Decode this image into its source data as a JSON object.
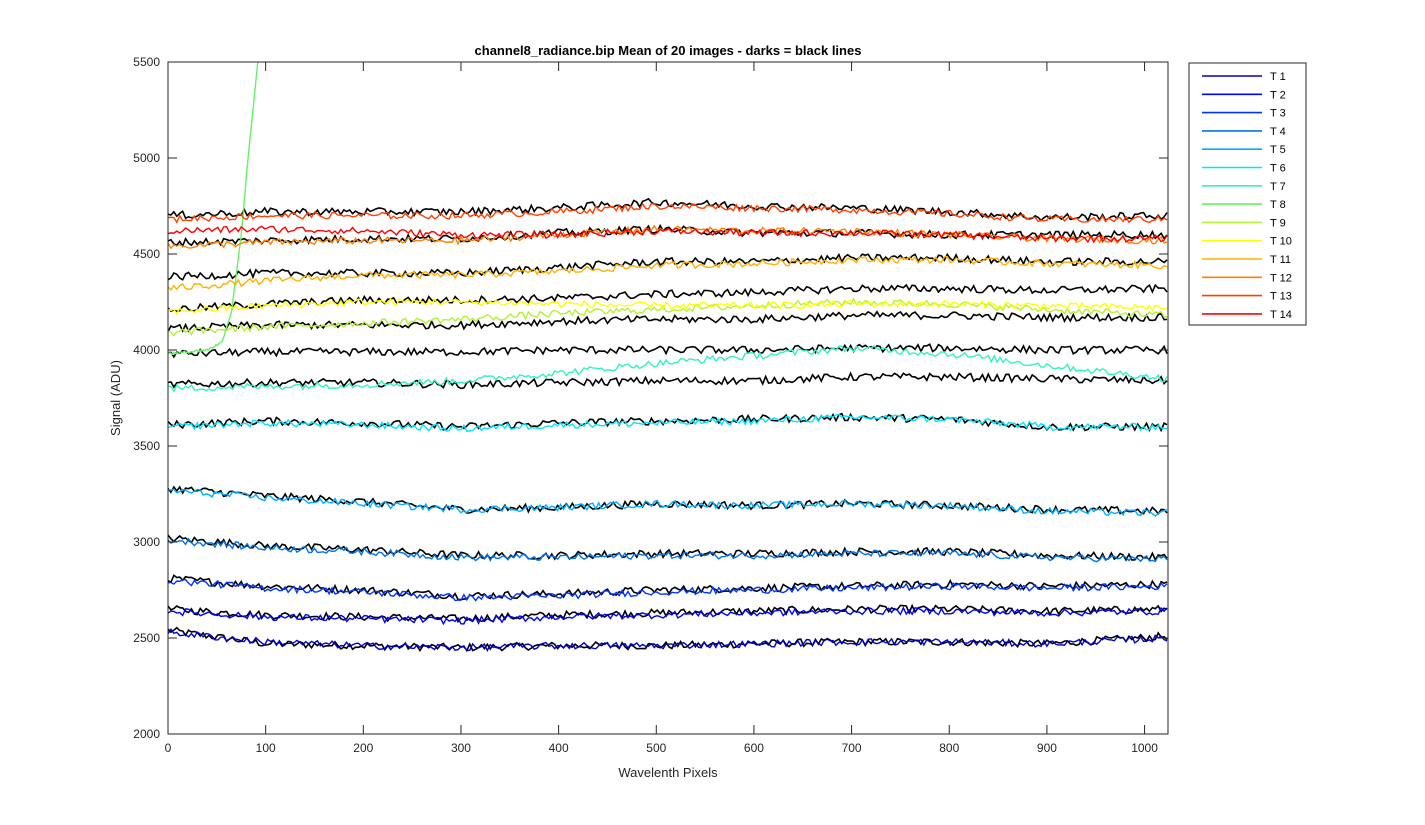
{
  "chart_data": {
    "type": "line",
    "title": "channel8_radiance.bip  Mean of 20 images - darks = black lines",
    "xlabel": "Wavelenth Pixels",
    "ylabel": "Signal (ADU)",
    "xlim": [
      0,
      1024
    ],
    "ylim": [
      2000,
      5500
    ],
    "xticks": [
      "0",
      "100",
      "200",
      "300",
      "400",
      "500",
      "600",
      "700",
      "800",
      "900",
      "1000"
    ],
    "yticks": [
      "2000",
      "2500",
      "3000",
      "3500",
      "4000",
      "4500",
      "5000",
      "5500"
    ],
    "grid": false,
    "legend_position": "outside-top-right",
    "dark_color": "#000000",
    "series": [
      {
        "name": "T 1",
        "color": "#0000cd",
        "x": [
          0,
          100,
          200,
          300,
          400,
          500,
          600,
          700,
          800,
          900,
          1024
        ],
        "y": [
          2530,
          2480,
          2460,
          2450,
          2460,
          2460,
          2470,
          2480,
          2480,
          2470,
          2500
        ]
      },
      {
        "name": "T 2",
        "color": "#0000ff",
        "x": [
          0,
          100,
          200,
          300,
          400,
          500,
          600,
          700,
          800,
          900,
          1024
        ],
        "y": [
          2640,
          2610,
          2600,
          2590,
          2610,
          2620,
          2630,
          2640,
          2640,
          2630,
          2640
        ]
      },
      {
        "name": "T 3",
        "color": "#0033ff",
        "x": [
          0,
          100,
          200,
          300,
          400,
          500,
          600,
          700,
          800,
          900,
          1024
        ],
        "y": [
          2800,
          2760,
          2740,
          2710,
          2720,
          2740,
          2750,
          2760,
          2770,
          2760,
          2770
        ]
      },
      {
        "name": "T 4",
        "color": "#0073e6",
        "x": [
          0,
          100,
          200,
          300,
          400,
          500,
          600,
          700,
          800,
          900,
          1024
        ],
        "y": [
          3010,
          2970,
          2950,
          2920,
          2920,
          2930,
          2930,
          2940,
          2940,
          2920,
          2910
        ]
      },
      {
        "name": "T 5",
        "color": "#00b0ff",
        "x": [
          0,
          100,
          200,
          300,
          400,
          500,
          600,
          700,
          800,
          900,
          1024
        ],
        "y": [
          3270,
          3230,
          3200,
          3170,
          3180,
          3200,
          3190,
          3200,
          3190,
          3160,
          3150
        ]
      },
      {
        "name": "T 6",
        "color": "#00e6ff",
        "x": [
          0,
          100,
          200,
          300,
          400,
          500,
          600,
          700,
          800,
          900,
          1024
        ],
        "y": [
          3600,
          3620,
          3610,
          3590,
          3610,
          3620,
          3630,
          3650,
          3640,
          3600,
          3600
        ]
      },
      {
        "name": "T 7",
        "color": "#33f2c0",
        "x": [
          0,
          100,
          200,
          300,
          400,
          500,
          600,
          700,
          800,
          900,
          1024
        ],
        "y": [
          3800,
          3810,
          3820,
          3840,
          3880,
          3930,
          3970,
          4010,
          3980,
          3920,
          3850
        ]
      },
      {
        "name": "T 8",
        "color": "#66f266",
        "x": [
          0,
          40,
          55,
          65,
          75,
          82,
          88,
          92
        ],
        "y": [
          3980,
          4000,
          4040,
          4200,
          4600,
          5000,
          5300,
          5500
        ]
      },
      {
        "name": "T 9",
        "color": "#b3f233",
        "x": [
          0,
          100,
          200,
          300,
          400,
          500,
          600,
          700,
          800,
          900,
          1024
        ],
        "y": [
          4090,
          4120,
          4140,
          4160,
          4190,
          4210,
          4230,
          4250,
          4240,
          4210,
          4180
        ]
      },
      {
        "name": "T 10",
        "color": "#ffff00",
        "x": [
          0,
          100,
          200,
          300,
          400,
          500,
          600,
          700,
          800,
          900,
          1024
        ],
        "y": [
          4200,
          4230,
          4250,
          4250,
          4240,
          4230,
          4230,
          4240,
          4240,
          4230,
          4220
        ]
      },
      {
        "name": "T 11",
        "color": "#ffb000",
        "x": [
          0,
          100,
          200,
          300,
          400,
          500,
          600,
          700,
          800,
          900,
          1024
        ],
        "y": [
          4320,
          4360,
          4390,
          4390,
          4410,
          4440,
          4450,
          4470,
          4470,
          4450,
          4440
        ]
      },
      {
        "name": "T 12",
        "color": "#ff8000",
        "x": [
          0,
          100,
          200,
          300,
          400,
          500,
          600,
          700,
          800,
          900,
          1024
        ],
        "y": [
          4540,
          4560,
          4570,
          4570,
          4600,
          4630,
          4620,
          4620,
          4600,
          4580,
          4570
        ]
      },
      {
        "name": "T 13",
        "color": "#ff4000",
        "x": [
          0,
          100,
          200,
          300,
          400,
          500,
          600,
          700,
          800,
          900,
          1024
        ],
        "y": [
          4680,
          4700,
          4700,
          4700,
          4720,
          4750,
          4740,
          4730,
          4710,
          4680,
          4680
        ]
      },
      {
        "name": "T 14",
        "color": "#ff0000",
        "x": [
          0,
          100,
          200,
          300,
          400,
          500,
          600,
          700,
          800,
          900,
          1024
        ],
        "y": [
          4620,
          4630,
          4620,
          4600,
          4600,
          4620,
          4610,
          4610,
          4600,
          4580,
          4580
        ]
      }
    ],
    "dark_lines": [
      {
        "x": [
          0,
          100,
          200,
          300,
          400,
          500,
          600,
          700,
          800,
          900,
          1024
        ],
        "y": [
          2540,
          2470,
          2460,
          2450,
          2460,
          2460,
          2470,
          2480,
          2480,
          2470,
          2510
        ]
      },
      {
        "x": [
          0,
          100,
          200,
          300,
          400,
          500,
          600,
          700,
          800,
          900,
          1024
        ],
        "y": [
          2650,
          2620,
          2610,
          2600,
          2620,
          2630,
          2640,
          2650,
          2650,
          2640,
          2650
        ]
      },
      {
        "x": [
          0,
          100,
          200,
          300,
          400,
          500,
          600,
          700,
          800,
          900,
          1024
        ],
        "y": [
          2810,
          2770,
          2750,
          2720,
          2730,
          2750,
          2760,
          2770,
          2780,
          2770,
          2780
        ]
      },
      {
        "x": [
          0,
          100,
          200,
          300,
          400,
          500,
          600,
          700,
          800,
          900,
          1024
        ],
        "y": [
          3020,
          2980,
          2960,
          2930,
          2930,
          2940,
          2940,
          2950,
          2950,
          2930,
          2920
        ]
      },
      {
        "x": [
          0,
          100,
          200,
          300,
          400,
          500,
          600,
          700,
          800,
          900,
          1024
        ],
        "y": [
          3280,
          3240,
          3210,
          3170,
          3180,
          3200,
          3190,
          3200,
          3190,
          3170,
          3160
        ]
      },
      {
        "x": [
          0,
          100,
          200,
          300,
          400,
          500,
          600,
          700,
          800,
          900,
          1024
        ],
        "y": [
          3610,
          3630,
          3620,
          3600,
          3620,
          3630,
          3640,
          3650,
          3640,
          3600,
          3600
        ]
      },
      {
        "x": [
          0,
          100,
          200,
          300,
          400,
          500,
          600,
          700,
          800,
          900,
          1024
        ],
        "y": [
          3820,
          3830,
          3830,
          3820,
          3830,
          3840,
          3840,
          3860,
          3860,
          3850,
          3840
        ]
      },
      {
        "x": [
          0,
          100,
          200,
          300,
          400,
          500,
          600,
          700,
          800,
          900,
          1024
        ],
        "y": [
          3980,
          3990,
          3990,
          3990,
          4000,
          4000,
          4000,
          4010,
          4010,
          4000,
          4000
        ]
      },
      {
        "x": [
          0,
          100,
          200,
          300,
          400,
          500,
          600,
          700,
          800,
          900,
          1024
        ],
        "y": [
          4110,
          4130,
          4130,
          4130,
          4150,
          4160,
          4160,
          4180,
          4180,
          4170,
          4170
        ]
      },
      {
        "x": [
          0,
          100,
          200,
          300,
          400,
          500,
          600,
          700,
          800,
          900,
          1024
        ],
        "y": [
          4210,
          4240,
          4260,
          4260,
          4270,
          4290,
          4300,
          4320,
          4320,
          4310,
          4320
        ]
      },
      {
        "x": [
          0,
          100,
          200,
          300,
          400,
          500,
          600,
          700,
          800,
          900,
          1024
        ],
        "y": [
          4380,
          4400,
          4400,
          4400,
          4430,
          4460,
          4460,
          4480,
          4480,
          4460,
          4460
        ]
      },
      {
        "x": [
          0,
          100,
          200,
          300,
          400,
          500,
          600,
          700,
          800,
          900,
          1024
        ],
        "y": [
          4560,
          4570,
          4580,
          4580,
          4610,
          4630,
          4610,
          4610,
          4600,
          4600,
          4600
        ]
      },
      {
        "x": [
          0,
          100,
          200,
          300,
          400,
          500,
          600,
          700,
          800,
          900,
          1024
        ],
        "y": [
          4700,
          4720,
          4720,
          4720,
          4740,
          4770,
          4750,
          4740,
          4720,
          4690,
          4700
        ]
      }
    ]
  }
}
